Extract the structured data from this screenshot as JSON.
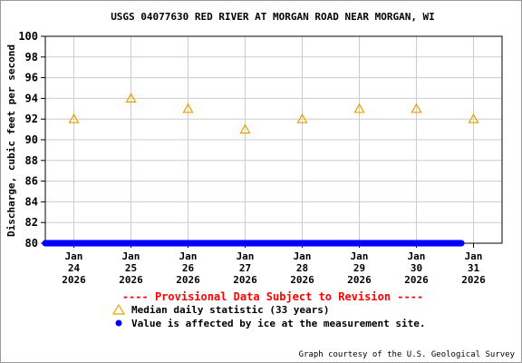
{
  "chart_data": {
    "type": "scatter",
    "title": "USGS 04077630 RED RIVER AT MORGAN ROAD NEAR MORGAN, WI",
    "ylabel": "Discharge, cubic feet per second",
    "xlabel": "",
    "ylim": [
      80,
      100
    ],
    "yticks": [
      "80",
      "82",
      "84",
      "86",
      "88",
      "90",
      "92",
      "94",
      "96",
      "98",
      "100"
    ],
    "xticks": [
      {
        "month": "Jan",
        "day": "24",
        "year": "2026"
      },
      {
        "month": "Jan",
        "day": "25",
        "year": "2026"
      },
      {
        "month": "Jan",
        "day": "26",
        "year": "2026"
      },
      {
        "month": "Jan",
        "day": "27",
        "year": "2026"
      },
      {
        "month": "Jan",
        "day": "28",
        "year": "2026"
      },
      {
        "month": "Jan",
        "day": "29",
        "year": "2026"
      },
      {
        "month": "Jan",
        "day": "30",
        "year": "2026"
      },
      {
        "month": "Jan",
        "day": "31",
        "year": "2026"
      }
    ],
    "x_range": [
      "2026-01-23T12:00",
      "2026-01-31T12:00"
    ],
    "grid": true,
    "series": [
      {
        "name": "Median daily statistic (33 years)",
        "marker": "triangle-open",
        "color": "#e8a000",
        "x": [
          "2026-01-24",
          "2026-01-25",
          "2026-01-26",
          "2026-01-27",
          "2026-01-28",
          "2026-01-29",
          "2026-01-30",
          "2026-01-31"
        ],
        "values": [
          92,
          94,
          93,
          91,
          92,
          93,
          93,
          92
        ]
      },
      {
        "name": "Value is affected by ice at the measurement site.",
        "marker": "dot",
        "color": "#0000ff",
        "x_start": "2026-01-23T12:00",
        "x_end": "2026-01-30T19:00",
        "value": 80
      }
    ],
    "provisional_note": "---- Provisional Data Subject to Revision ----",
    "credit": "Graph courtesy of the U.S. Geological Survey"
  }
}
